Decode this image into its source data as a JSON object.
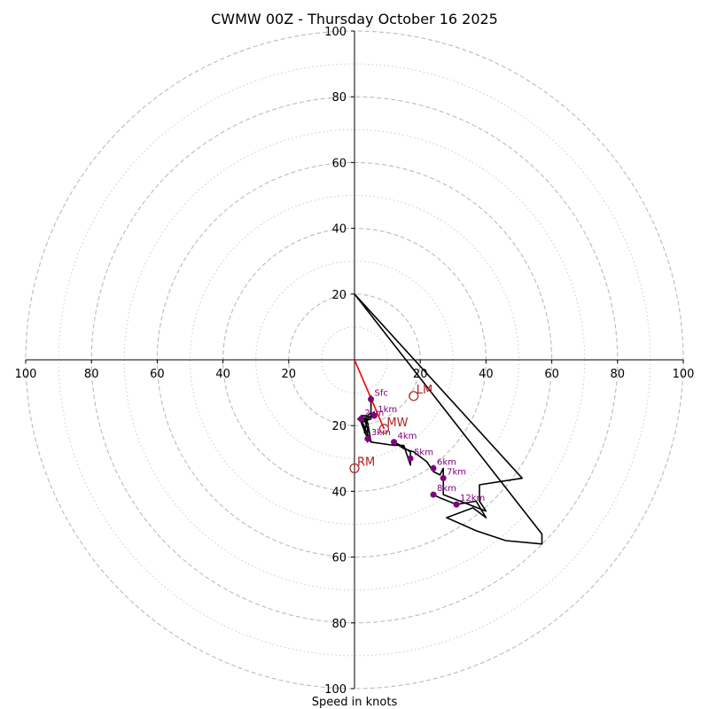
{
  "chart_data": {
    "type": "hodograph",
    "title": "CWMW 00Z - Thursday October 16 2025",
    "xlabel": "Speed in knots",
    "xlim": [
      -100,
      100
    ],
    "ylim": [
      -100,
      100
    ],
    "ring_major": [
      20,
      40,
      60,
      80,
      100
    ],
    "ring_minor": [
      10,
      30,
      50,
      70,
      90
    ],
    "x_tick_labels": [
      "100",
      "80",
      "60",
      "40",
      "20",
      "20",
      "40",
      "60",
      "80",
      "100"
    ],
    "x_tick_values": [
      -100,
      -80,
      -60,
      -40,
      -20,
      20,
      40,
      60,
      80,
      100
    ],
    "y_tick_labels": [
      "100",
      "80",
      "60",
      "40",
      "20",
      "20",
      "40",
      "60",
      "80",
      "100"
    ],
    "y_tick_values": [
      100,
      80,
      60,
      40,
      20,
      -20,
      -40,
      -60,
      -80,
      -100
    ],
    "grid": true,
    "colors": {
      "wind_profile": "#000000",
      "height_markers": "#800080",
      "storm_motion": "#b22222",
      "mean_wind_vector": "#ff0000",
      "grid": "#bbbbbb"
    },
    "wind_profile": [
      [
        0,
        20
      ],
      [
        51,
        -36
      ],
      [
        38,
        -38
      ],
      [
        38,
        -43
      ],
      [
        40,
        -46
      ],
      [
        27,
        -41
      ],
      [
        27,
        -37
      ],
      [
        27,
        -33
      ],
      [
        26,
        -35
      ],
      [
        24,
        -34
      ],
      [
        22,
        -31
      ],
      [
        18,
        -28
      ],
      [
        15,
        -27
      ],
      [
        12,
        -25
      ],
      [
        14,
        -26
      ],
      [
        17,
        -28
      ],
      [
        17,
        -32
      ],
      [
        15,
        -26
      ],
      [
        12,
        -26
      ],
      [
        5,
        -25
      ],
      [
        4,
        -19
      ],
      [
        2,
        -17
      ],
      [
        4,
        -17
      ],
      [
        5,
        -16
      ],
      [
        5,
        -11
      ],
      [
        5,
        -18
      ],
      [
        2,
        -19
      ],
      [
        4,
        -24
      ],
      [
        4,
        -25
      ],
      [
        4,
        -21
      ],
      [
        3,
        -18
      ],
      [
        2,
        -18
      ],
      [
        5,
        -25
      ],
      [
        3,
        -22
      ],
      [
        4,
        -18
      ],
      [
        6,
        -16
      ],
      [
        6,
        -17
      ],
      [
        1,
        -18
      ],
      [
        4,
        -18
      ],
      [
        3,
        -19
      ]
    ],
    "upper_profile": [
      [
        0,
        20
      ],
      [
        57,
        -53
      ],
      [
        57,
        -56
      ],
      [
        46,
        -55
      ],
      [
        37,
        -52
      ],
      [
        28,
        -48
      ],
      [
        36,
        -45
      ],
      [
        40,
        -48
      ],
      [
        37,
        -43
      ],
      [
        31,
        -44
      ],
      [
        26,
        -42
      ],
      [
        24,
        -41
      ]
    ],
    "height_markers": [
      {
        "label": "Sfc",
        "u": 5,
        "v": -12
      },
      {
        "label": "1km",
        "u": 6,
        "v": -17
      },
      {
        "label": "2km",
        "u": 2,
        "v": -18
      },
      {
        "label": "3km",
        "u": 4,
        "v": -24
      },
      {
        "label": "4km",
        "u": 12,
        "v": -25
      },
      {
        "label": "5km",
        "u": 17,
        "v": -30
      },
      {
        "label": "6km",
        "u": 24,
        "v": -33
      },
      {
        "label": "7km",
        "u": 27,
        "v": -36
      },
      {
        "label": "8km",
        "u": 24,
        "v": -41
      },
      {
        "label": "12km",
        "u": 31,
        "v": -44
      }
    ],
    "storm_motion": [
      {
        "label": "LM",
        "u": 18,
        "v": -11
      },
      {
        "label": "MW",
        "u": 9,
        "v": -21
      },
      {
        "label": "RM",
        "u": 0,
        "v": -33
      }
    ],
    "mean_wind_line": [
      [
        0,
        0
      ],
      [
        9,
        -21
      ]
    ]
  }
}
